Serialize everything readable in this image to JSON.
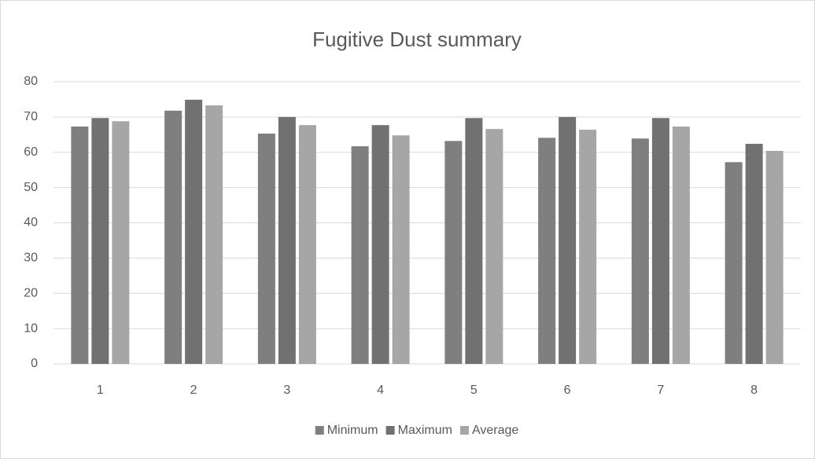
{
  "chart_data": {
    "type": "bar",
    "title": "Fugitive Dust summary",
    "categories": [
      "1",
      "2",
      "3",
      "4",
      "5",
      "6",
      "7",
      "8"
    ],
    "series": [
      {
        "name": "Minimum",
        "color": "#7f7f7f",
        "values": [
          67.3,
          71.8,
          65.3,
          61.7,
          63.2,
          64.1,
          63.9,
          57.2
        ]
      },
      {
        "name": "Maximum",
        "color": "#717171",
        "values": [
          69.7,
          74.9,
          70.0,
          67.7,
          69.7,
          70.0,
          69.7,
          62.4
        ]
      },
      {
        "name": "Average",
        "color": "#a6a6a6",
        "values": [
          68.8,
          73.3,
          67.7,
          64.8,
          66.6,
          66.4,
          67.3,
          60.4
        ]
      }
    ],
    "ylim": [
      0,
      80
    ],
    "yticks": [
      0,
      10,
      20,
      30,
      40,
      50,
      60,
      70,
      80
    ],
    "grid": true,
    "legend": "bottom"
  }
}
